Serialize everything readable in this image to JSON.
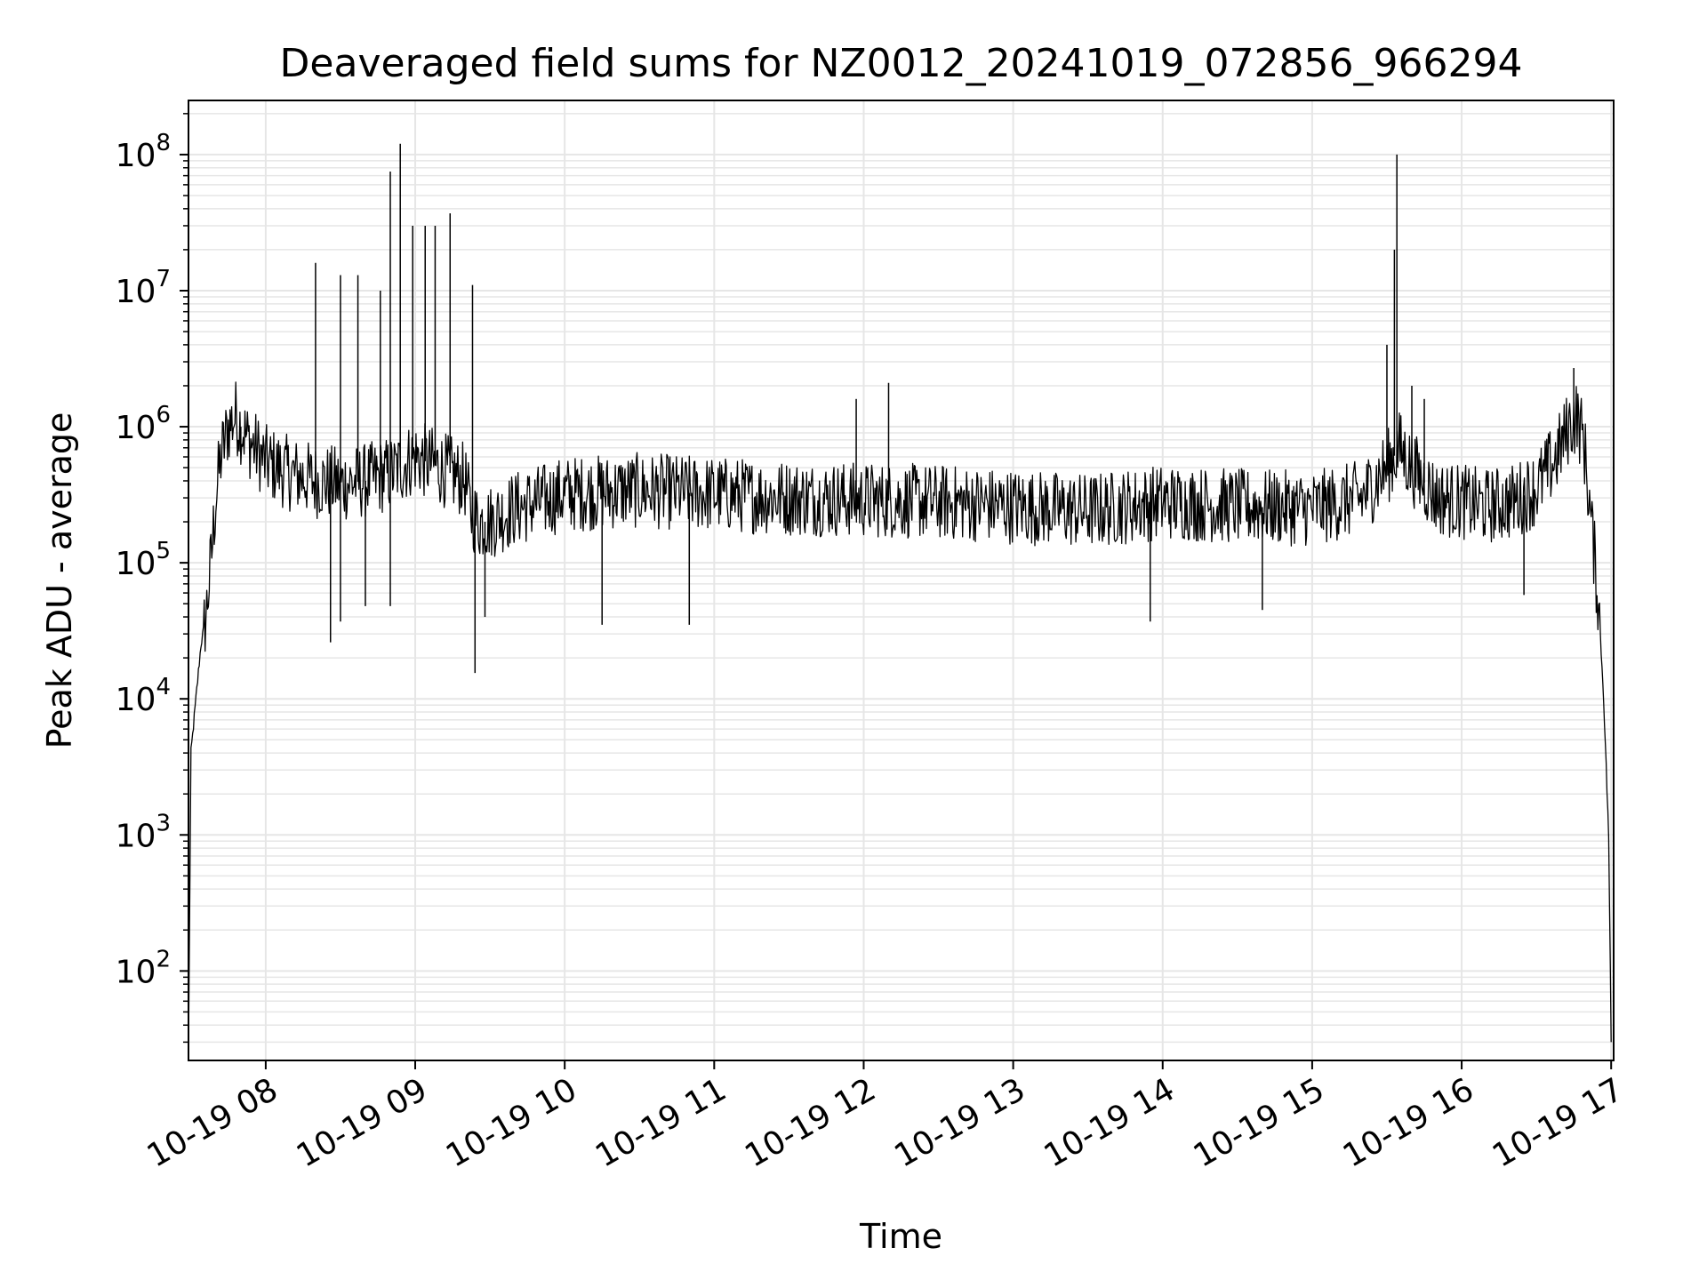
{
  "chart_data": {
    "type": "line",
    "title": "Deaveraged field sums for NZ0012_20241019_072856_966294",
    "xlabel": "Time",
    "ylabel": "Peak ADU - average",
    "xscale": "time",
    "yscale": "log",
    "xlim": [
      "2024-10-19 07:29",
      "2024-10-19 17:01"
    ],
    "ylim": [
      22,
      250000000
    ],
    "grid": true,
    "x_ticks": [
      "10-19 08",
      "10-19 09",
      "10-19 10",
      "10-19 11",
      "10-19 12",
      "10-19 13",
      "10-19 14",
      "10-19 15",
      "10-19 16",
      "10-19 17"
    ],
    "x_tick_times": [
      "2024-10-19 08:00",
      "2024-10-19 09:00",
      "2024-10-19 10:00",
      "2024-10-19 11:00",
      "2024-10-19 12:00",
      "2024-10-19 13:00",
      "2024-10-19 14:00",
      "2024-10-19 15:00",
      "2024-10-19 16:00",
      "2024-10-19 17:00"
    ],
    "y_ticks": [
      {
        "value": 100,
        "base": "10",
        "exp": "2"
      },
      {
        "value": 1000,
        "base": "10",
        "exp": "3"
      },
      {
        "value": 10000,
        "base": "10",
        "exp": "4"
      },
      {
        "value": 100000,
        "base": "10",
        "exp": "5"
      },
      {
        "value": 1000000,
        "base": "10",
        "exp": "6"
      },
      {
        "value": 10000000,
        "base": "10",
        "exp": "7"
      },
      {
        "value": 100000000,
        "base": "10",
        "exp": "8"
      }
    ],
    "series": [
      {
        "color": "#000000",
        "points": [
          [
            "2024-10-19 07:29",
            25
          ],
          [
            "2024-10-19 07:30",
            4000
          ],
          [
            "2024-10-19 07:32",
            10000
          ],
          [
            "2024-10-19 07:34",
            25000
          ],
          [
            "2024-10-19 07:36",
            40000
          ],
          [
            "2024-10-19 07:38",
            100000
          ],
          [
            "2024-10-19 07:40",
            300000
          ],
          [
            "2024-10-19 07:42",
            600000
          ],
          [
            "2024-10-19 07:45",
            1000000
          ],
          [
            "2024-10-19 07:48",
            1200000
          ],
          [
            "2024-10-19 07:50",
            1000000
          ],
          [
            "2024-10-19 07:53",
            800000
          ],
          [
            "2024-10-19 07:57",
            650000
          ],
          [
            "2024-10-19 08:00",
            550000
          ],
          [
            "2024-10-19 08:10",
            450000
          ],
          [
            "2024-10-19 08:20",
            400000
          ],
          [
            "2024-10-19 08:30",
            380000
          ],
          [
            "2024-10-19 08:40",
            400000
          ],
          [
            "2024-10-19 08:50",
            450000
          ],
          [
            "2024-10-19 09:00",
            600000
          ],
          [
            "2024-10-19 09:10",
            500000
          ],
          [
            "2024-10-19 09:20",
            400000
          ],
          [
            "2024-10-19 09:22",
            250000
          ],
          [
            "2024-10-19 09:25",
            200000
          ],
          [
            "2024-10-19 09:30",
            200000
          ],
          [
            "2024-10-19 09:40",
            250000
          ],
          [
            "2024-10-19 09:50",
            280000
          ],
          [
            "2024-10-19 10:00",
            320000
          ],
          [
            "2024-10-19 10:30",
            340000
          ],
          [
            "2024-10-19 11:00",
            320000
          ],
          [
            "2024-10-19 11:30",
            300000
          ],
          [
            "2024-10-19 12:00",
            290000
          ],
          [
            "2024-10-19 12:30",
            280000
          ],
          [
            "2024-10-19 13:00",
            260000
          ],
          [
            "2024-10-19 13:30",
            240000
          ],
          [
            "2024-10-19 14:00",
            280000
          ],
          [
            "2024-10-19 14:30",
            260000
          ],
          [
            "2024-10-19 15:00",
            250000
          ],
          [
            "2024-10-19 15:20",
            300000
          ],
          [
            "2024-10-19 15:30",
            500000
          ],
          [
            "2024-10-19 15:35",
            700000
          ],
          [
            "2024-10-19 15:40",
            500000
          ],
          [
            "2024-10-19 15:50",
            300000
          ],
          [
            "2024-10-19 16:00",
            280000
          ],
          [
            "2024-10-19 16:10",
            260000
          ],
          [
            "2024-10-19 16:20",
            280000
          ],
          [
            "2024-10-19 16:30",
            350000
          ],
          [
            "2024-10-19 16:38",
            600000
          ],
          [
            "2024-10-19 16:43",
            1000000
          ],
          [
            "2024-10-19 16:46",
            1200000
          ],
          [
            "2024-10-19 16:49",
            800000
          ],
          [
            "2024-10-19 16:52",
            200000
          ],
          [
            "2024-10-19 16:55",
            50000
          ],
          [
            "2024-10-19 16:57",
            10000
          ],
          [
            "2024-10-19 16:59",
            1000
          ],
          [
            "2024-10-19 17:00",
            30
          ]
        ],
        "spikes": [
          [
            "2024-10-19 07:50",
            650000
          ],
          [
            "2024-10-19 08:20",
            16000000
          ],
          [
            "2024-10-19 08:30",
            13000000
          ],
          [
            "2024-10-19 08:37",
            13000000
          ],
          [
            "2024-10-19 08:46",
            10000000
          ],
          [
            "2024-10-19 08:50",
            75000000
          ],
          [
            "2024-10-19 08:54",
            120000000
          ],
          [
            "2024-10-19 08:59",
            30000000
          ],
          [
            "2024-10-19 09:04",
            30000000
          ],
          [
            "2024-10-19 09:08",
            30000000
          ],
          [
            "2024-10-19 09:14",
            37000000
          ],
          [
            "2024-10-19 09:23",
            11000000
          ],
          [
            "2024-10-19 11:57",
            1600000
          ],
          [
            "2024-10-19 12:10",
            2100000
          ],
          [
            "2024-10-19 15:30",
            4000000
          ],
          [
            "2024-10-19 15:33",
            20000000
          ],
          [
            "2024-10-19 15:34",
            100000000
          ],
          [
            "2024-10-19 15:40",
            2000000
          ],
          [
            "2024-10-19 15:45",
            1600000
          ],
          [
            "2024-10-19 16:45",
            2700000
          ]
        ],
        "dips": [
          [
            "2024-10-19 08:26",
            26000
          ],
          [
            "2024-10-19 08:30",
            37000
          ],
          [
            "2024-10-19 08:40",
            48000
          ],
          [
            "2024-10-19 08:50",
            48000
          ],
          [
            "2024-10-19 09:24",
            15500
          ],
          [
            "2024-10-19 09:28",
            40000
          ],
          [
            "2024-10-19 10:15",
            35000
          ],
          [
            "2024-10-19 10:50",
            35000
          ],
          [
            "2024-10-19 13:55",
            37000
          ],
          [
            "2024-10-19 14:40",
            45000
          ],
          [
            "2024-10-19 16:25",
            58000
          ]
        ]
      }
    ]
  }
}
